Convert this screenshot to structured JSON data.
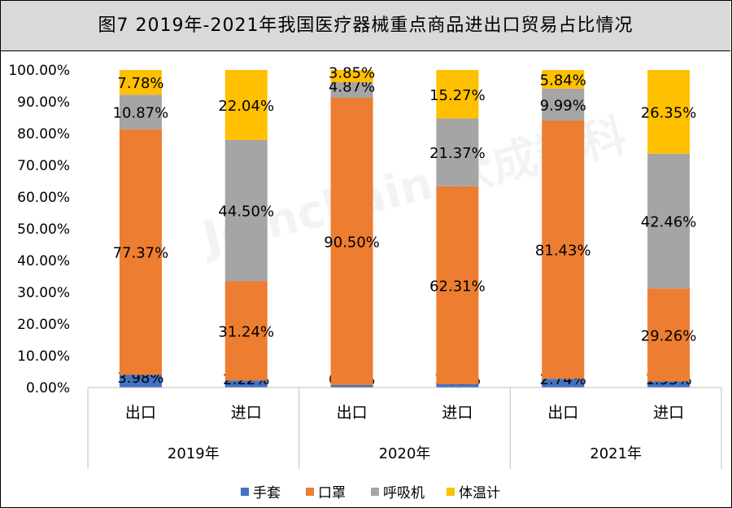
{
  "title": "图7  2019年-2021年我国医疗器械重点商品进出口贸易占比情况",
  "watermark": "Joinchain.众成数科",
  "chart_data": {
    "type": "bar",
    "stacked": true,
    "percent": true,
    "groups": [
      {
        "label": "2019年",
        "categories": [
          "出口",
          "进口"
        ]
      },
      {
        "label": "2020年",
        "categories": [
          "出口",
          "进口"
        ]
      },
      {
        "label": "2021年",
        "categories": [
          "出口",
          "进口"
        ]
      }
    ],
    "categories": [
      "出口",
      "进口",
      "出口",
      "进口",
      "出口",
      "进口"
    ],
    "series": [
      {
        "name": "手套",
        "color": "#4472c4",
        "values": [
          3.98,
          2.22,
          0.78,
          1.05,
          2.74,
          1.93
        ]
      },
      {
        "name": "口罩",
        "color": "#ed7d31",
        "values": [
          77.37,
          31.24,
          90.5,
          62.31,
          81.43,
          29.26
        ]
      },
      {
        "name": "呼吸机",
        "color": "#a5a5a5",
        "values": [
          10.87,
          44.5,
          4.87,
          21.37,
          9.99,
          42.46
        ]
      },
      {
        "name": "体温计",
        "color": "#ffc000",
        "values": [
          7.78,
          22.04,
          3.85,
          15.27,
          5.84,
          26.35
        ]
      }
    ],
    "data_labels": [
      [
        "3.98%",
        "2.22%",
        "0.78%",
        "1.05%",
        "2.74%",
        "1.93%"
      ],
      [
        "77.37%",
        "31.24%",
        "90.50%",
        "62.31%",
        "81.43%",
        "29.26%"
      ],
      [
        "10.87%",
        "44.50%",
        "4.87%",
        "21.37%",
        "9.99%",
        "42.46%"
      ],
      [
        "7.78%",
        "22.04%",
        "3.85%",
        "15.27%",
        "5.84%",
        "26.35%"
      ]
    ],
    "y_ticks": [
      "0.00%",
      "10.00%",
      "20.00%",
      "30.00%",
      "40.00%",
      "50.00%",
      "60.00%",
      "70.00%",
      "80.00%",
      "90.00%",
      "100.00%"
    ],
    "ylim": [
      0,
      100
    ],
    "grid": false,
    "legend_position": "bottom"
  }
}
